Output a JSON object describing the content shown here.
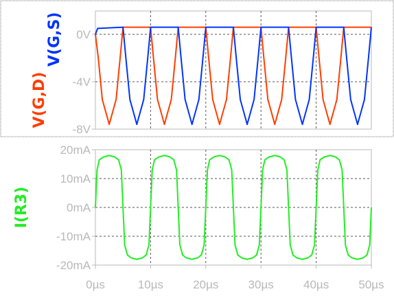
{
  "chart_data": [
    {
      "type": "line",
      "xlabel": "",
      "xlim": [
        0,
        50
      ],
      "ylim": [
        -8,
        2
      ],
      "y_ticks": [
        0,
        -4,
        -8
      ],
      "y_tick_labels": [
        "0V",
        "-4V",
        "-8V"
      ],
      "ylabel_parts": [
        {
          "text": "V(G,D)",
          "color": "#ff3d00"
        },
        {
          "text": "V(G,S)",
          "color": "#0033ff"
        }
      ],
      "grid": true,
      "series": [
        {
          "name": "V(G,D)",
          "color": "#ff3d00",
          "x": [
            0,
            0.5,
            1.25,
            2.5,
            3.75,
            4.5,
            5,
            10,
            10.5,
            11.25,
            12.5,
            13.75,
            14.5,
            15,
            20,
            20.5,
            21.25,
            22.5,
            23.75,
            24.5,
            25,
            30,
            30.5,
            31.25,
            32.5,
            33.75,
            34.5,
            35,
            40,
            40.5,
            41.25,
            42.5,
            43.75,
            44.5,
            45,
            50
          ],
          "y": [
            0,
            -1.9,
            -5.5,
            -7.6,
            -5.5,
            -1.9,
            0.6,
            0.6,
            -1.9,
            -5.5,
            -7.6,
            -5.5,
            -1.9,
            0.6,
            0.6,
            -1.9,
            -5.5,
            -7.6,
            -5.5,
            -1.9,
            0.6,
            0.6,
            -1.9,
            -5.5,
            -7.6,
            -5.5,
            -1.9,
            0.6,
            0.6,
            -1.9,
            -5.5,
            -7.6,
            -5.5,
            -1.9,
            0.6,
            0.6
          ]
        },
        {
          "name": "V(G,S)",
          "color": "#0033ff",
          "x": [
            0,
            0.4,
            5,
            5.5,
            6.25,
            7.5,
            8.75,
            9.5,
            10,
            15,
            15.5,
            16.25,
            17.5,
            18.75,
            19.5,
            20,
            25,
            25.5,
            26.25,
            27.5,
            28.75,
            29.5,
            30,
            35,
            35.5,
            36.25,
            37.5,
            38.75,
            39.5,
            40,
            45,
            45.5,
            46.25,
            47.5,
            48.75,
            49.5,
            50
          ],
          "y": [
            0,
            0.5,
            0.6,
            -1.9,
            -5.5,
            -7.6,
            -5.5,
            -1.9,
            0.6,
            0.6,
            -1.9,
            -5.5,
            -7.6,
            -5.5,
            -1.9,
            0.6,
            0.6,
            -1.9,
            -5.5,
            -7.6,
            -5.5,
            -1.9,
            0.6,
            0.6,
            -1.9,
            -5.5,
            -7.6,
            -5.5,
            -1.9,
            0.6,
            0.6,
            -1.9,
            -5.5,
            -7.6,
            -5.5,
            -1.9,
            0.6
          ]
        }
      ]
    },
    {
      "type": "line",
      "xlim": [
        0,
        50
      ],
      "x_ticks": [
        0,
        10,
        20,
        30,
        40,
        50
      ],
      "x_tick_labels": [
        "0µs",
        "10µs",
        "20µs",
        "30µs",
        "40µs",
        "50µs"
      ],
      "ylim": [
        -20,
        20
      ],
      "y_ticks": [
        20,
        10,
        0,
        -10,
        -20
      ],
      "y_tick_labels": [
        "20mA",
        "10mA",
        "0mA",
        "-10mA",
        "-20mA"
      ],
      "ylabel_parts": [
        {
          "text": "I(R3)",
          "color": "#22ee22"
        }
      ],
      "grid": true,
      "series": [
        {
          "name": "I(R3)",
          "color": "#22ee22",
          "x": [
            0,
            0.3,
            0.7,
            1.5,
            2.5,
            3.5,
            4.2,
            4.7,
            5,
            5.3,
            5.8,
            6.5,
            7.5,
            8.5,
            9.2,
            9.7,
            10,
            10.3,
            10.7,
            11.5,
            12.5,
            13.5,
            14.2,
            14.7,
            15,
            15.3,
            15.8,
            16.5,
            17.5,
            18.5,
            19.2,
            19.7,
            20,
            20.3,
            20.7,
            21.5,
            22.5,
            23.5,
            24.2,
            24.7,
            25,
            25.3,
            25.8,
            26.5,
            27.5,
            28.5,
            29.2,
            29.7,
            30,
            30.3,
            30.7,
            31.5,
            32.5,
            33.5,
            34.2,
            34.7,
            35,
            35.3,
            35.8,
            36.5,
            37.5,
            38.5,
            39.2,
            39.7,
            40,
            40.3,
            40.7,
            41.5,
            42.5,
            43.5,
            44.2,
            44.7,
            45,
            45.3,
            45.8,
            46.5,
            47.5,
            48.5,
            49.2,
            49.7,
            50
          ],
          "y": [
            0,
            13,
            16.5,
            17.5,
            18,
            17.5,
            16.5,
            13,
            0,
            -13,
            -16.5,
            -17.5,
            -18,
            -17.5,
            -16.5,
            -13,
            0,
            13,
            16.5,
            17.5,
            18,
            17.5,
            16.5,
            13,
            0,
            -13,
            -16.5,
            -17.5,
            -18,
            -17.5,
            -16.5,
            -13,
            0,
            13,
            16.5,
            17.5,
            18,
            17.5,
            16.5,
            13,
            0,
            -13,
            -16.5,
            -17.5,
            -18,
            -17.5,
            -16.5,
            -13,
            0,
            13,
            16.5,
            17.5,
            18,
            17.5,
            16.5,
            13,
            0,
            -13,
            -16.5,
            -17.5,
            -18,
            -17.5,
            -16.5,
            -13,
            0,
            13,
            16.5,
            17.5,
            18,
            17.5,
            16.5,
            13,
            0,
            -13,
            -16.5,
            -17.5,
            -18,
            -17.5,
            -16.5,
            -13,
            0
          ]
        }
      ]
    }
  ]
}
